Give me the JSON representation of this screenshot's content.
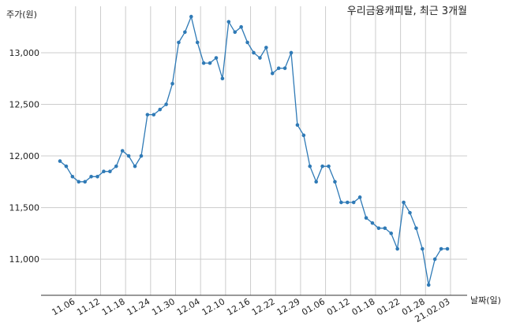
{
  "chart_data": {
    "type": "line",
    "title": "우리금융캐피탈, 최근 3개월",
    "ylabel": "주가(원)",
    "xlabel": "날짜(일)",
    "ylim": [
      10650,
      13450
    ],
    "y_ticks": [
      11000,
      11500,
      12000,
      12500,
      13000
    ],
    "y_tick_labels": [
      "11,000",
      "11,500",
      "12,000",
      "12,500",
      "13,000"
    ],
    "grid": true,
    "color": "#2f7ab6",
    "x_tick_labels": [
      "11.06",
      "11.12",
      "11.18",
      "11.24",
      "11.30",
      "12.04",
      "12.10",
      "12.16",
      "12.22",
      "12.29",
      "01.06",
      "01.12",
      "01.18",
      "01.22",
      "01.28",
      "21.02.03"
    ],
    "x_tick_positions": [
      2.5,
      6.5,
      10.5,
      14.5,
      18.5,
      22.5,
      26.5,
      30.5,
      34.5,
      38.5,
      42.5,
      46.5,
      50.5,
      54.5,
      58.5,
      62.5
    ],
    "series": [
      {
        "values": [
          11950,
          11900,
          11800,
          11750,
          11750,
          11800,
          11800,
          11850,
          11850,
          11900,
          12050,
          12000,
          11900,
          12000,
          12400,
          12400,
          12450,
          12500,
          12700,
          13100,
          13200,
          13350,
          13100,
          12900,
          12900,
          12950,
          12750,
          13300,
          13200,
          13250,
          13100,
          13000,
          12950,
          13050,
          12800,
          12850,
          12850,
          13000,
          12300,
          12200,
          11900,
          11750,
          11900,
          11900,
          11750,
          11550,
          11550,
          11550,
          11600,
          11400,
          11350,
          11300,
          11300,
          11250,
          11100,
          11550,
          11450,
          11300,
          11100,
          10750,
          11000,
          11100,
          11100
        ]
      }
    ]
  }
}
